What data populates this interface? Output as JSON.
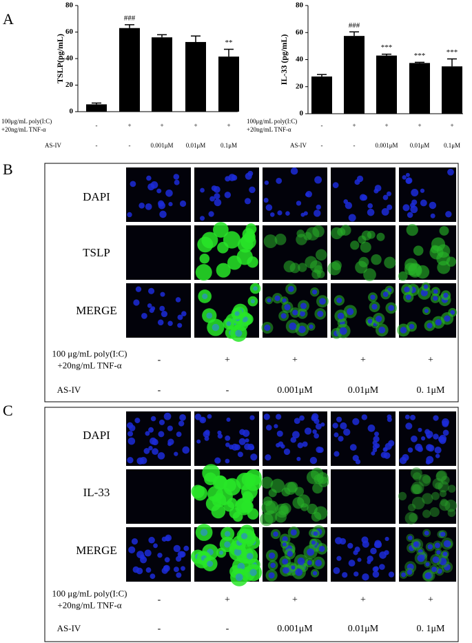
{
  "panel_labels": [
    "A",
    "B",
    "C"
  ],
  "chart_data": [
    {
      "type": "bar",
      "y_label": "TSLP(pg/mL)",
      "color": "#000000",
      "values": [
        5.5,
        63,
        56,
        52.5,
        41.5
      ],
      "errors": [
        1,
        2.5,
        2,
        4.5,
        5.5
      ],
      "annotations": [
        null,
        "###",
        null,
        null,
        "**"
      ],
      "ylim": [
        0,
        80
      ],
      "yticks": [
        0,
        20,
        40,
        60,
        80
      ],
      "conditions": [
        {
          "label_lines": [
            "100μg/mL poly(I:C)",
            "+20ng/mL TNF-α"
          ],
          "values": [
            "-",
            "+",
            "+",
            "+",
            "+"
          ]
        },
        {
          "label_lines": [
            "AS-IV"
          ],
          "values": [
            "-",
            "-",
            "0.001μM",
            "0.01μM",
            "0.1μM"
          ]
        }
      ]
    },
    {
      "type": "bar",
      "y_label": "IL-33 (pg/mL)",
      "color": "#000000",
      "values": [
        27.5,
        57.5,
        43,
        37.5,
        35
      ],
      "errors": [
        1.5,
        3,
        1,
        0.5,
        5.5
      ],
      "annotations": [
        null,
        "###",
        "***",
        "***",
        "***"
      ],
      "ylim": [
        0,
        80
      ],
      "yticks": [
        0,
        20,
        40,
        60,
        80
      ],
      "conditions": [
        {
          "label_lines": [
            "100μg/mL poly(I:C)",
            "+20ng/mL TNF-α"
          ],
          "values": [
            "-",
            "+",
            "+",
            "+",
            "+"
          ]
        },
        {
          "label_lines": [
            "AS-IV"
          ],
          "values": [
            "-",
            "-",
            "0.001μM",
            "0.01μM",
            "0.1μM"
          ]
        }
      ]
    }
  ],
  "panels": [
    {
      "rows": [
        "DAPI",
        "TSLP",
        "MERGE"
      ],
      "conditions": [
        {
          "label_lines": [
            "100 μg/mL poly(I:C)",
            "+20ng/mL  TNF-α"
          ],
          "values": [
            "-",
            "+",
            "+",
            "+",
            "+"
          ]
        },
        {
          "label_lines": [
            "AS-IV"
          ],
          "values": [
            "-",
            "-",
            "0.001μM",
            "0.01μM",
            "0. 1μM"
          ]
        }
      ]
    },
    {
      "rows": [
        "DAPI",
        "IL-33",
        "MERGE"
      ],
      "conditions": [
        {
          "label_lines": [
            "100 μg/mL poly(I:C)",
            "+20ng/mL  TNF-α"
          ],
          "values": [
            "-",
            "+",
            "+",
            "+",
            "+"
          ]
        },
        {
          "label_lines": [
            "AS-IV"
          ],
          "values": [
            "-",
            "-",
            "0.001μM",
            "0.01μM",
            "0. 1μM"
          ]
        }
      ]
    }
  ]
}
